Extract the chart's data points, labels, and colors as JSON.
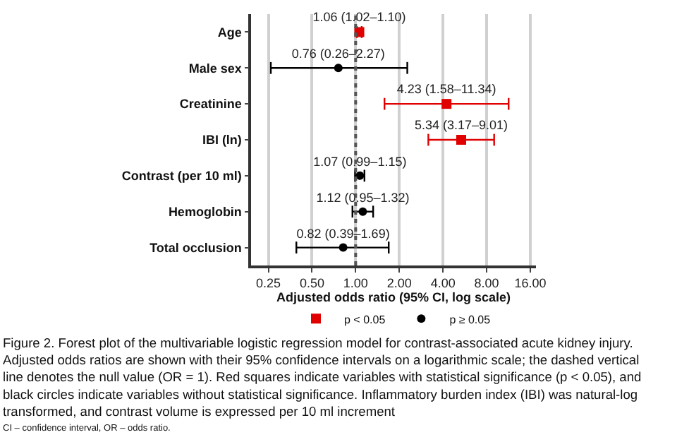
{
  "chart_data": {
    "type": "scatter",
    "orientation": "horizontal",
    "categories": [
      "Age",
      "Male sex",
      "Creatinine",
      "IBI (ln)",
      "Contrast (per 10 ml)",
      "Hemoglobin",
      "Total occlusion"
    ],
    "series": [
      {
        "name": "p < 0.05",
        "color": "#e00000",
        "marker": "square",
        "values": [
          1.06,
          null,
          4.23,
          5.34,
          null,
          null,
          null
        ],
        "errors": [
          [
            1.02,
            1.1
          ],
          null,
          [
            1.58,
            11.34
          ],
          [
            3.17,
            9.01
          ],
          null,
          null,
          null
        ],
        "value_labels": [
          "1.06 (1.02–1.10)",
          null,
          "4.23 (1.58–11.34)",
          "5.34 (3.17–9.01)",
          null,
          null,
          null
        ]
      },
      {
        "name": "p ≥ 0.05",
        "color": "#000000",
        "marker": "circle",
        "values": [
          null,
          0.76,
          null,
          null,
          1.07,
          1.12,
          0.82
        ],
        "errors": [
          null,
          [
            0.26,
            2.27
          ],
          null,
          null,
          [
            0.99,
            1.15
          ],
          [
            0.95,
            1.32
          ],
          [
            0.39,
            1.69
          ]
        ],
        "value_labels": [
          null,
          "0.76 (0.26–2.27)",
          null,
          null,
          "1.07 (0.99–1.15)",
          "1.12 (0.95–1.32)",
          "0.82 (0.39–1.69)"
        ]
      }
    ],
    "xlabel": "Adjusted odds ratio (95% CI, log scale)",
    "log": "x",
    "xlim": [
      0.19,
      17.5
    ],
    "xticks": [
      0.25,
      {
        "value": 0.5,
        "label": "0.50"
      },
      {
        "value": 1,
        "label": "1.00"
      },
      {
        "value": 2,
        "label": "2.00"
      },
      {
        "value": 4,
        "label": "4.00"
      },
      {
        "value": 8,
        "label": "8.00"
      },
      {
        "value": 16,
        "label": "16.00"
      }
    ],
    "grid": "x",
    "ref_lines": [
      {
        "axis": "x",
        "value": 1,
        "color": "#555555",
        "line_style": "dotted"
      }
    ],
    "legend": "bottom",
    "annotations": [
      "Figure 2. Forest plot of the multivariable logistic regression model for contrast-associated acute kidney injury.\nAdjusted odds ratios are shown with their 95% confidence intervals on a logarithmic scale; the dashed vertical\nline denotes the null value (OR = 1). Red squares indicate variables with statistical significance (p < 0.05), and\nblack circles indicate variables without statistical significance. Inflammatory burden index (IBI) was natural-log\ntransformed, and contrast volume is expressed per 10 ml increment",
      "CI – confidence interval, OR – odds ratio."
    ]
  }
}
